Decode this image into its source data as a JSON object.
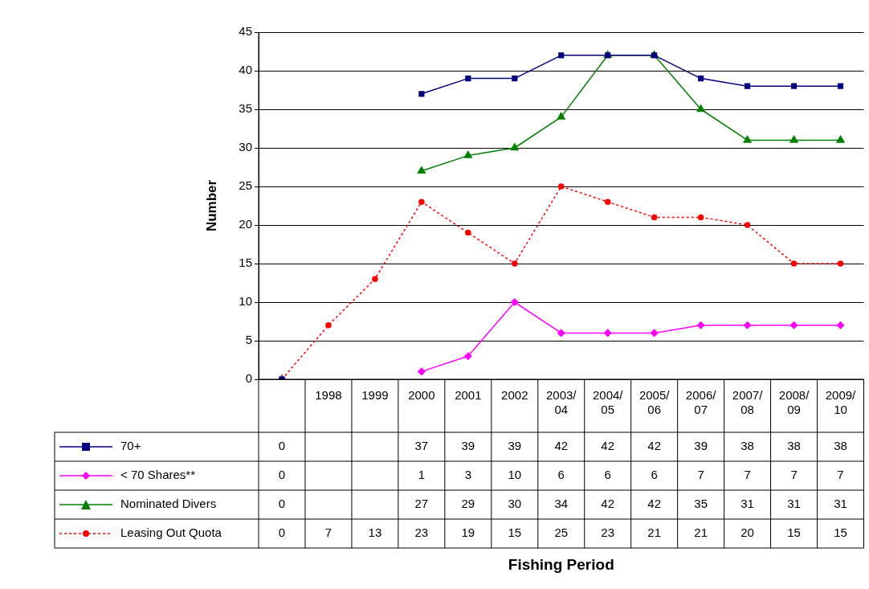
{
  "chart_data": {
    "type": "line",
    "annotations": [
      "Fishing Period"
    ],
    "ylabel": "Number",
    "categories": [
      null,
      "1998",
      "1999",
      "2000",
      "2001",
      "2002",
      "2003/04",
      "2004/05",
      "2005/06",
      "2006/07",
      "2007/08",
      "2008/09",
      "2009/10"
    ],
    "series": [
      {
        "name": "70+",
        "color": "#000080",
        "marker": "square",
        "line_style": "solid",
        "values": [
          0,
          null,
          null,
          37,
          39,
          39,
          42,
          42,
          42,
          39,
          38,
          38,
          38
        ]
      },
      {
        "name": "< 70 Shares**",
        "color": "#ff00ff",
        "marker": "diamond",
        "line_style": "solid",
        "values": [
          0,
          null,
          null,
          1,
          3,
          10,
          6,
          6,
          6,
          7,
          7,
          7,
          7
        ]
      },
      {
        "name": "Nominated Divers",
        "color": "#008000",
        "marker": "triangle",
        "line_style": "solid",
        "values": [
          0,
          null,
          null,
          27,
          29,
          30,
          34,
          42,
          42,
          35,
          31,
          31,
          31
        ]
      },
      {
        "name": "Leasing Out Quota",
        "color": "#ff0000",
        "marker": "circle",
        "line_style": "dotted",
        "values": [
          0,
          7,
          13,
          23,
          19,
          15,
          25,
          23,
          21,
          21,
          20,
          15,
          15
        ]
      }
    ],
    "ylim": [
      0,
      45
    ],
    "yticks": [
      0,
      5,
      10,
      15,
      20,
      25,
      30,
      35,
      40,
      45
    ],
    "grid": "y",
    "legend": "bottom left",
    "data_labels": true
  }
}
